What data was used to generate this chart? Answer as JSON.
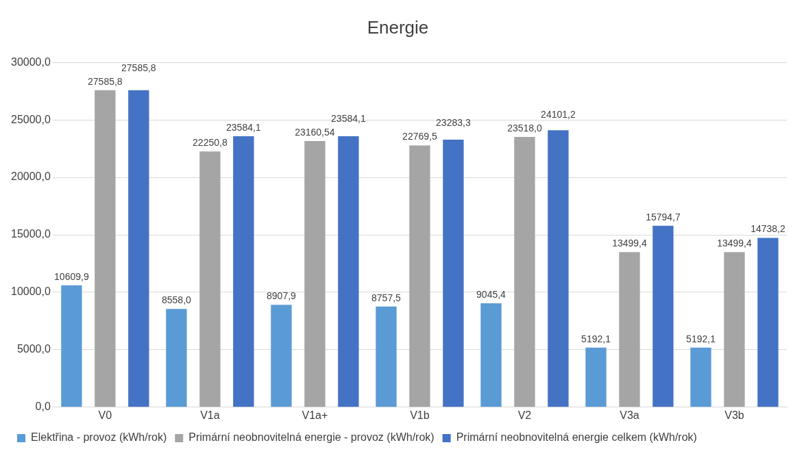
{
  "chart_data": {
    "type": "bar",
    "title": "Energie",
    "categories": [
      "V0",
      "V1a",
      "V1a+",
      "V1b",
      "V2",
      "V3a",
      "V3b"
    ],
    "series": [
      {
        "name": "Elektřina - provoz (kWh/rok)",
        "color": "#5b9bd5",
        "values": [
          10609.9,
          8558.0,
          8907.9,
          8757.5,
          9045.4,
          5192.1,
          5192.1
        ],
        "value_labels": [
          "10609,9",
          "8558,0",
          "8907,9",
          "8757,5",
          "9045,4",
          "5192,1",
          "5192,1"
        ]
      },
      {
        "name": "Primární neobnovitelná energie - provoz (kWh/rok)",
        "color": "#a5a5a5",
        "values": [
          27585.8,
          22250.8,
          23160.54,
          22769.5,
          23518.0,
          13499.4,
          13499.4
        ],
        "value_labels": [
          "27585,8",
          "22250,8",
          "23160,54",
          "22769,5",
          "23518,0",
          "13499,4",
          "13499,4"
        ]
      },
      {
        "name": "Primární neobnovitelná energie celkem (kWh/rok)",
        "color": "#4472c4",
        "values": [
          27585.8,
          23584.1,
          23584.1,
          23283.3,
          24101.2,
          15794.7,
          14738.2
        ],
        "value_labels": [
          "27585,8",
          "23584,1",
          "23584,1",
          "23283,3",
          "24101,2",
          "15794,7",
          "14738,2"
        ]
      }
    ],
    "ylim": [
      0,
      30000
    ],
    "yticks": [
      {
        "value": 0,
        "label": "0,0"
      },
      {
        "value": 5000,
        "label": "5000,0"
      },
      {
        "value": 10000,
        "label": "10000,0"
      },
      {
        "value": 15000,
        "label": "15000,0"
      },
      {
        "value": 20000,
        "label": "20000,0"
      },
      {
        "value": 25000,
        "label": "25000,0"
      },
      {
        "value": 30000,
        "label": "30000,0"
      }
    ],
    "grid": "y",
    "legend": "bottom"
  }
}
